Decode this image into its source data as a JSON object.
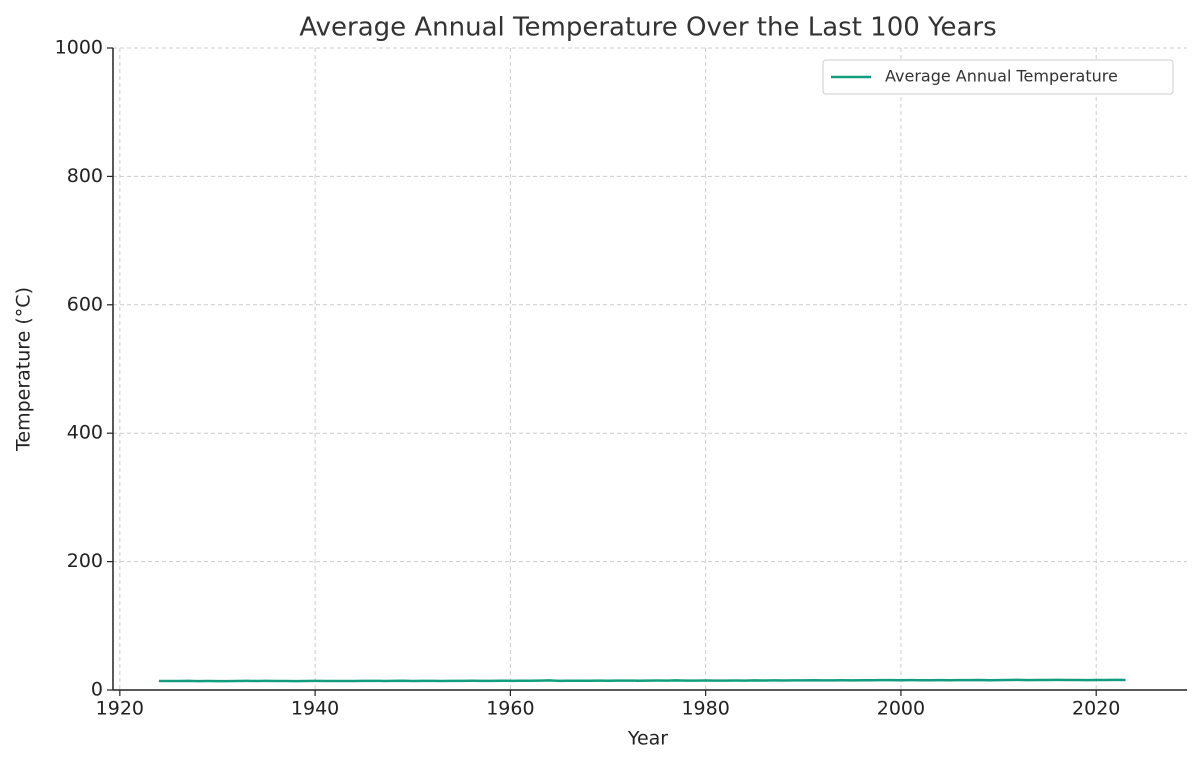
{
  "chart_data": {
    "type": "line",
    "title": "Average Annual Temperature Over the Last 100 Years",
    "x_label": "Year",
    "y_label": "Temperature (°C)",
    "x": [
      1924,
      1925,
      1926,
      1927,
      1928,
      1929,
      1930,
      1931,
      1932,
      1933,
      1934,
      1935,
      1936,
      1937,
      1938,
      1939,
      1940,
      1941,
      1942,
      1943,
      1944,
      1945,
      1946,
      1947,
      1948,
      1949,
      1950,
      1951,
      1952,
      1953,
      1954,
      1955,
      1956,
      1957,
      1958,
      1959,
      1960,
      1961,
      1962,
      1963,
      1964,
      1965,
      1966,
      1967,
      1968,
      1969,
      1970,
      1971,
      1972,
      1973,
      1974,
      1975,
      1976,
      1977,
      1978,
      1979,
      1980,
      1981,
      1982,
      1983,
      1984,
      1985,
      1986,
      1987,
      1988,
      1989,
      1990,
      1991,
      1992,
      1993,
      1994,
      1995,
      1996,
      1997,
      1998,
      1999,
      2000,
      2001,
      2002,
      2003,
      2004,
      2005,
      2006,
      2007,
      2008,
      2009,
      2010,
      2011,
      2012,
      2013,
      2014,
      2015,
      2016,
      2017,
      2018,
      2019,
      2020,
      2021,
      2022,
      2023
    ],
    "series": [
      {
        "name": "Average Annual Temperature",
        "color": "#129e7e",
        "values": [
          14.0,
          14.1,
          14.0,
          14.2,
          13.9,
          14.0,
          13.9,
          13.9,
          14.1,
          14.2,
          14.1,
          14.2,
          14.0,
          14.1,
          13.9,
          14.0,
          14.2,
          14.1,
          14.0,
          14.1,
          14.0,
          14.2,
          14.3,
          14.1,
          14.2,
          14.4,
          14.1,
          14.3,
          14.2,
          14.1,
          14.3,
          14.2,
          14.4,
          14.3,
          14.2,
          14.4,
          14.3,
          14.5,
          14.4,
          14.6,
          14.9,
          14.3,
          14.4,
          14.5,
          14.4,
          14.6,
          14.5,
          14.7,
          14.6,
          14.5,
          14.6,
          14.8,
          14.7,
          14.9,
          14.6,
          14.7,
          14.8,
          14.7,
          14.6,
          14.8,
          14.7,
          15.0,
          14.8,
          14.9,
          14.8,
          15.0,
          14.9,
          15.1,
          14.9,
          15.0,
          15.1,
          15.0,
          15.2,
          15.1,
          15.3,
          15.4,
          15.2,
          15.3,
          15.1,
          15.2,
          15.3,
          15.2,
          15.4,
          15.3,
          15.5,
          15.2,
          15.4,
          15.6,
          15.7,
          15.3,
          15.5,
          15.6,
          15.7,
          15.5,
          15.6,
          15.4,
          15.6,
          15.5,
          15.7,
          15.6
        ]
      }
    ],
    "xlim": [
      1919.3,
      2029.3
    ],
    "xticks": [
      1920,
      1940,
      1960,
      1980,
      2000,
      2020
    ],
    "ylim": [
      0,
      1000
    ],
    "yticks": [
      0,
      200,
      400,
      600,
      800,
      1000
    ],
    "grid": true,
    "legend": "upper right"
  }
}
